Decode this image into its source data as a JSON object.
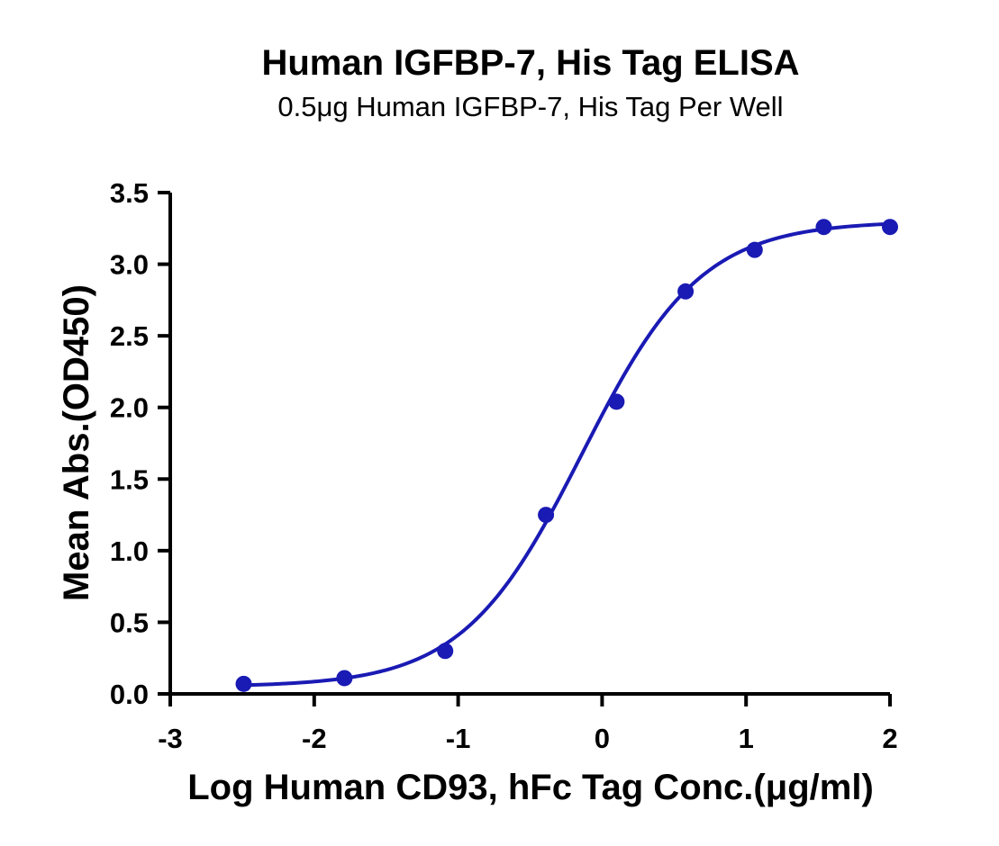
{
  "chart_data": {
    "type": "scatter",
    "title": "Human IGFBP-7, His Tag ELISA",
    "subtitle": "0.5μg Human IGFBP-7, His Tag Per Well",
    "xlabel": "Log Human CD93, hFc Tag Conc.(μg/ml)",
    "ylabel": "Mean Abs.(OD450)",
    "xlim": [
      -3,
      2
    ],
    "ylim": [
      0,
      3.5
    ],
    "x_ticks": [
      "-3",
      "-2",
      "-1",
      "0",
      "1",
      "2"
    ],
    "y_ticks": [
      "0.0",
      "0.5",
      "1.0",
      "1.5",
      "2.0",
      "2.5",
      "3.0",
      "3.5"
    ],
    "grid": false,
    "color": "#1a1ab4",
    "series": [
      {
        "x": [
          -2.49,
          -1.79,
          -1.09,
          -0.39,
          0.1,
          0.58,
          1.06,
          1.54,
          2.0
        ],
        "y": [
          0.07,
          0.11,
          0.3,
          1.25,
          2.04,
          2.81,
          3.1,
          3.26,
          3.26
        ]
      }
    ],
    "fit_curve": {
      "model": "4PL",
      "bottom": 0.05,
      "top": 3.3,
      "log_ec50": -0.14,
      "hill_slope": 1.05
    }
  }
}
